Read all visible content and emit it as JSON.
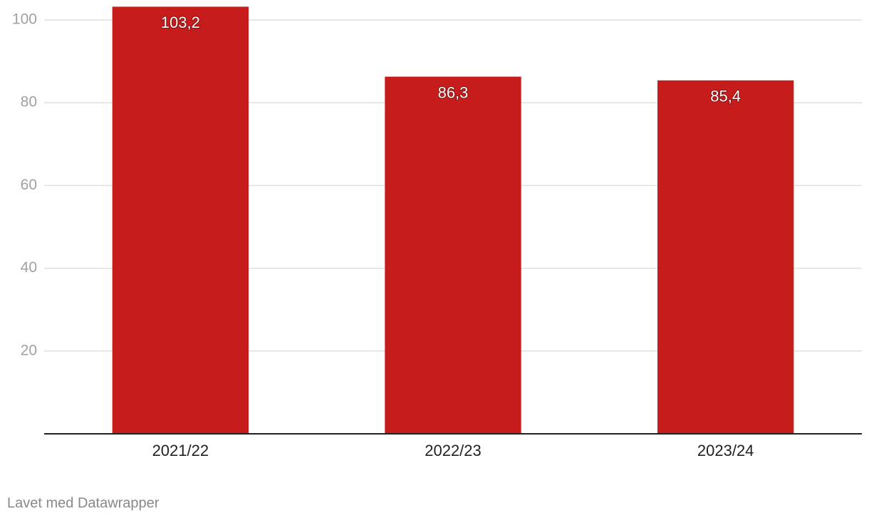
{
  "chart_data": {
    "type": "bar",
    "categories": [
      "2021/22",
      "2022/23",
      "2023/24"
    ],
    "values": [
      103.2,
      86.3,
      85.4
    ],
    "value_labels": [
      "103,2",
      "86,3",
      "85,4"
    ],
    "color": "#c71c1c",
    "ylim": [
      0,
      103.2
    ],
    "yticks": [
      20,
      40,
      60,
      80,
      100
    ],
    "grid": true,
    "source": "Lavet med Datawrapper"
  }
}
